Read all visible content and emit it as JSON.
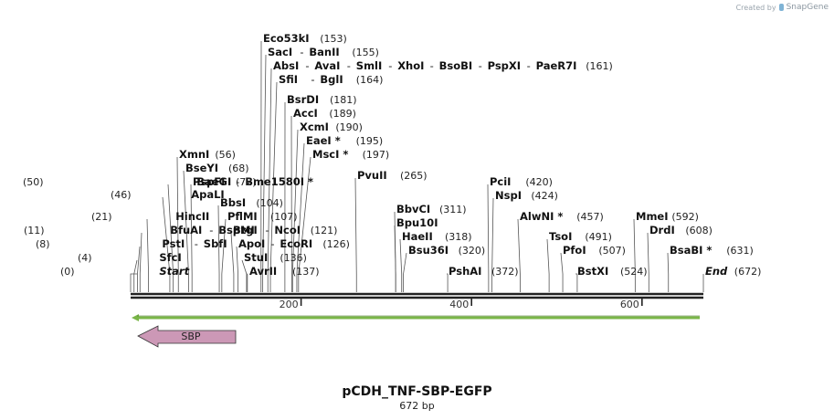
{
  "watermark": {
    "prefix": "Created by",
    "brand": "SnapGene"
  },
  "plasmid": {
    "name": "pCDH_TNF-SBP-EGFP",
    "length_label": "672 bp",
    "length": 672
  },
  "scale": {
    "ticks": [
      "200",
      "400",
      "600"
    ],
    "tick_values": [
      200,
      400,
      600
    ]
  },
  "features": [
    {
      "name": "EGFP-strand",
      "label": "",
      "color": "#7ab648",
      "direction": "reverse"
    },
    {
      "name": "SBP",
      "label": "SBP",
      "color": "#cc98b6",
      "direction": "reverse"
    }
  ],
  "sites": [
    {
      "text": "(0)",
      "enzymes": [
        "Start"
      ],
      "pos": 0,
      "special": true
    },
    {
      "text": "(4)",
      "enzymes": [
        "SfcI"
      ],
      "pos": 4
    },
    {
      "text": "(8)",
      "enzymes": [
        "PstI",
        "SbfI"
      ],
      "pos": 8
    },
    {
      "text": "(11)",
      "enzymes": [
        "BfuAI",
        "BspMI"
      ],
      "pos": 11
    },
    {
      "text": "(21)",
      "enzymes": [
        "HincII"
      ],
      "pos": 21
    },
    {
      "text": "(46)",
      "enzymes": [
        "ApaLI"
      ],
      "pos": 46
    },
    {
      "text": "(50)",
      "enzymes": [
        "BaeGI",
        "Bme1580I *"
      ],
      "pos": 50
    },
    {
      "text": "(56)",
      "enzymes": [
        "XmnI"
      ],
      "pos": 56
    },
    {
      "text": "(68)",
      "enzymes": [
        "BseYI"
      ],
      "pos": 68
    },
    {
      "text": "(72)",
      "enzymes": [
        "PspFI"
      ],
      "pos": 72
    },
    {
      "text": "(104)",
      "enzymes": [
        "BbsI"
      ],
      "pos": 104
    },
    {
      "text": "(107)",
      "enzymes": [
        "PflMI"
      ],
      "pos": 107
    },
    {
      "text": "(121)",
      "enzymes": [
        "BtgI",
        "NcoI"
      ],
      "pos": 121
    },
    {
      "text": "(126)",
      "enzymes": [
        "ApoI",
        "EcoRI"
      ],
      "pos": 126
    },
    {
      "text": "(136)",
      "enzymes": [
        "StuI"
      ],
      "pos": 136
    },
    {
      "text": "(137)",
      "enzymes": [
        "AvrII"
      ],
      "pos": 137
    },
    {
      "text": "(153)",
      "enzymes": [
        "Eco53kI"
      ],
      "pos": 153
    },
    {
      "text": "(155)",
      "enzymes": [
        "SacI",
        "BanII"
      ],
      "pos": 155
    },
    {
      "text": "(161)",
      "enzymes": [
        "AbsI",
        "AvaI",
        "SmlI",
        "XhoI",
        "BsoBI",
        "PspXI",
        "PaeR7I"
      ],
      "pos": 161
    },
    {
      "text": "(164)",
      "enzymes": [
        "SfiI",
        "BglI"
      ],
      "pos": 164
    },
    {
      "text": "(181)",
      "enzymes": [
        "BsrDI"
      ],
      "pos": 181
    },
    {
      "text": "(189)",
      "enzymes": [
        "AccI"
      ],
      "pos": 189
    },
    {
      "text": "(190)",
      "enzymes": [
        "XcmI"
      ],
      "pos": 190
    },
    {
      "text": "(195)",
      "enzymes": [
        "EaeI *"
      ],
      "pos": 195
    },
    {
      "text": "(197)",
      "enzymes": [
        "MscI *"
      ],
      "pos": 197
    },
    {
      "text": "(265)",
      "enzymes": [
        "PvuII"
      ],
      "pos": 265
    },
    {
      "text": "(311)",
      "enzymes": [
        "BbvCI"
      ],
      "pos": 311
    },
    {
      "text": "",
      "enzymes": [
        "Bpu10I"
      ],
      "pos": 311
    },
    {
      "text": "(318)",
      "enzymes": [
        "HaeII"
      ],
      "pos": 318
    },
    {
      "text": "(320)",
      "enzymes": [
        "Bsu36I"
      ],
      "pos": 320
    },
    {
      "text": "(372)",
      "enzymes": [
        "PshAI"
      ],
      "pos": 372
    },
    {
      "text": "(420)",
      "enzymes": [
        "PciI"
      ],
      "pos": 420
    },
    {
      "text": "(424)",
      "enzymes": [
        "NspI"
      ],
      "pos": 424
    },
    {
      "text": "(457)",
      "enzymes": [
        "AlwNI *"
      ],
      "pos": 457
    },
    {
      "text": "(491)",
      "enzymes": [
        "TsoI"
      ],
      "pos": 491
    },
    {
      "text": "(507)",
      "enzymes": [
        "PfoI"
      ],
      "pos": 507
    },
    {
      "text": "(524)",
      "enzymes": [
        "BstXI"
      ],
      "pos": 524
    },
    {
      "text": "(592)",
      "enzymes": [
        "MmeI"
      ],
      "pos": 592
    },
    {
      "text": "(608)",
      "enzymes": [
        "DrdI"
      ],
      "pos": 608
    },
    {
      "text": "(631)",
      "enzymes": [
        "BsaBI *"
      ],
      "pos": 631
    },
    {
      "text": "(672)",
      "enzymes": [
        "End"
      ],
      "pos": 672,
      "special": true
    }
  ]
}
